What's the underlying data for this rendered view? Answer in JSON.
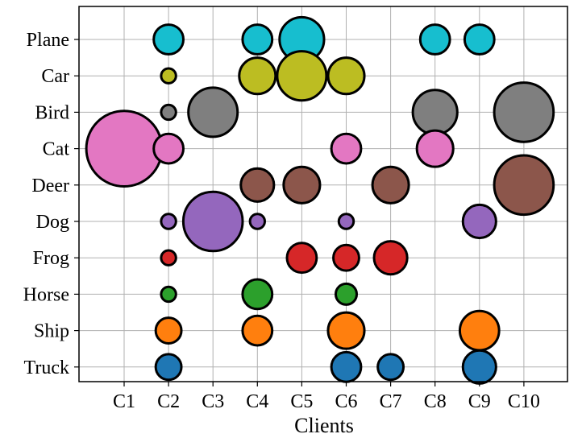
{
  "chart_data": {
    "type": "scatter",
    "title": "",
    "xlabel": "Clients",
    "ylabel": "",
    "x_categories": [
      "C1",
      "C2",
      "C3",
      "C4",
      "C5",
      "C6",
      "C7",
      "C8",
      "C9",
      "C10"
    ],
    "y_categories": [
      "Plane",
      "Car",
      "Bird",
      "Cat",
      "Deer",
      "Dog",
      "Frog",
      "Horse",
      "Ship",
      "Truck"
    ],
    "grid": true,
    "legend": "none",
    "class_colors": {
      "Plane": "#17becf",
      "Car": "#bcbd22",
      "Bird": "#7f7f7f",
      "Cat": "#e377c2",
      "Deer": "#8c564b",
      "Dog": "#9467bd",
      "Frog": "#d62728",
      "Horse": "#2ca02c",
      "Ship": "#ff7f0e",
      "Truck": "#1f77b4"
    },
    "bubble_size_unit": "relative sample count (1 = smallest)",
    "points": [
      {
        "client": "C2",
        "class": "Plane",
        "size": 4
      },
      {
        "client": "C4",
        "class": "Plane",
        "size": 4
      },
      {
        "client": "C5",
        "class": "Plane",
        "size": 9
      },
      {
        "client": "C8",
        "class": "Plane",
        "size": 4
      },
      {
        "client": "C9",
        "class": "Plane",
        "size": 4
      },
      {
        "client": "C2",
        "class": "Car",
        "size": 1
      },
      {
        "client": "C4",
        "class": "Car",
        "size": 6
      },
      {
        "client": "C5",
        "class": "Car",
        "size": 11
      },
      {
        "client": "C6",
        "class": "Car",
        "size": 6
      },
      {
        "client": "C2",
        "class": "Bird",
        "size": 1
      },
      {
        "client": "C3",
        "class": "Bird",
        "size": 11
      },
      {
        "client": "C8",
        "class": "Bird",
        "size": 9
      },
      {
        "client": "C10",
        "class": "Bird",
        "size": 16
      },
      {
        "client": "C1",
        "class": "Cat",
        "size": 26
      },
      {
        "client": "C2",
        "class": "Cat",
        "size": 4
      },
      {
        "client": "C6",
        "class": "Cat",
        "size": 4
      },
      {
        "client": "C8",
        "class": "Cat",
        "size": 6
      },
      {
        "client": "C4",
        "class": "Deer",
        "size": 5
      },
      {
        "client": "C5",
        "class": "Deer",
        "size": 6
      },
      {
        "client": "C7",
        "class": "Deer",
        "size": 6
      },
      {
        "client": "C10",
        "class": "Deer",
        "size": 16
      },
      {
        "client": "C2",
        "class": "Dog",
        "size": 1
      },
      {
        "client": "C3",
        "class": "Dog",
        "size": 16
      },
      {
        "client": "C4",
        "class": "Dog",
        "size": 1
      },
      {
        "client": "C6",
        "class": "Dog",
        "size": 1
      },
      {
        "client": "C9",
        "class": "Dog",
        "size": 5
      },
      {
        "client": "C2",
        "class": "Frog",
        "size": 1
      },
      {
        "client": "C5",
        "class": "Frog",
        "size": 4
      },
      {
        "client": "C6",
        "class": "Frog",
        "size": 3
      },
      {
        "client": "C7",
        "class": "Frog",
        "size": 5
      },
      {
        "client": "C2",
        "class": "Horse",
        "size": 1
      },
      {
        "client": "C4",
        "class": "Horse",
        "size": 4
      },
      {
        "client": "C6",
        "class": "Horse",
        "size": 2
      },
      {
        "client": "C2",
        "class": "Ship",
        "size": 3
      },
      {
        "client": "C4",
        "class": "Ship",
        "size": 4
      },
      {
        "client": "C6",
        "class": "Ship",
        "size": 6
      },
      {
        "client": "C9",
        "class": "Ship",
        "size": 7
      },
      {
        "client": "C2",
        "class": "Truck",
        "size": 3
      },
      {
        "client": "C6",
        "class": "Truck",
        "size": 4
      },
      {
        "client": "C7",
        "class": "Truck",
        "size": 3
      },
      {
        "client": "C9",
        "class": "Truck",
        "size": 5
      }
    ]
  }
}
